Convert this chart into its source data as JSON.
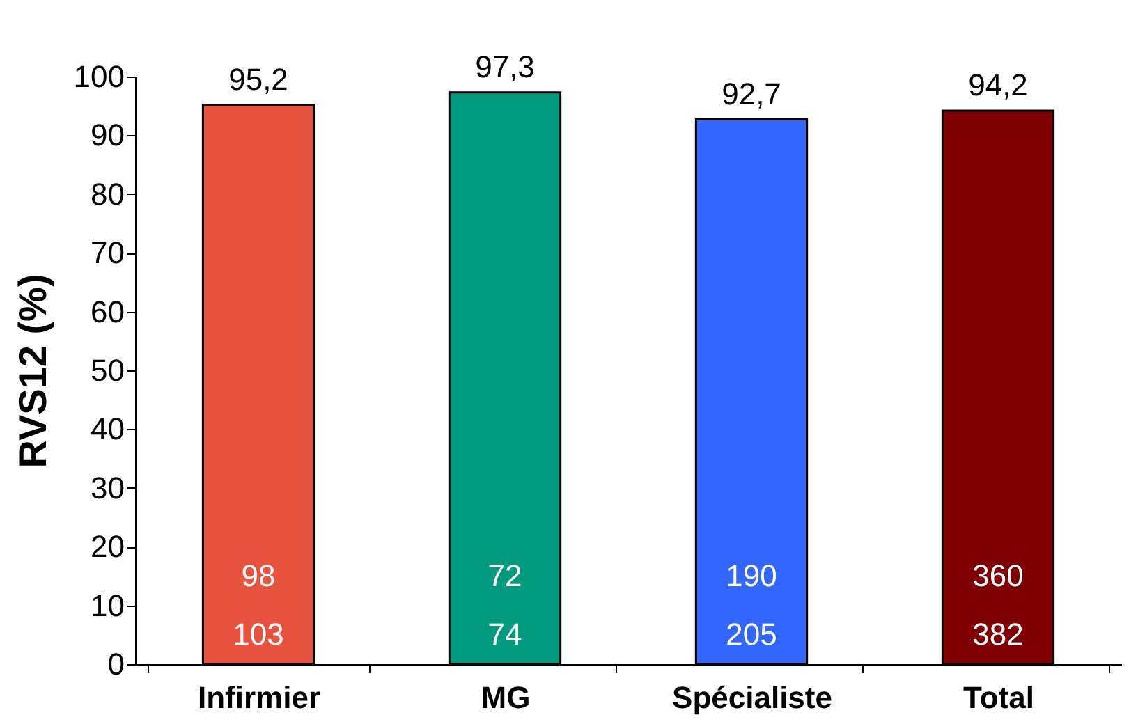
{
  "chart_data": {
    "type": "bar",
    "ylabel": "RVS12 (%)",
    "categories": [
      "Infirmier",
      "MG",
      "Spécialiste",
      "Total"
    ],
    "values": [
      95.2,
      97.3,
      92.7,
      94.2
    ],
    "colors": [
      "#e8533f",
      "#009b7d",
      "#3366ff",
      "#7f0000"
    ],
    "ylim": [
      0,
      100
    ],
    "yticks": [
      0,
      10,
      20,
      30,
      40,
      50,
      60,
      70,
      80,
      90,
      100
    ],
    "grid": false,
    "value_labels": [
      "95,2",
      "97,3",
      "92,7",
      "94,2"
    ],
    "annotations": [
      "98",
      "103",
      "72",
      "74",
      "190",
      "205",
      "360",
      "382"
    ]
  }
}
